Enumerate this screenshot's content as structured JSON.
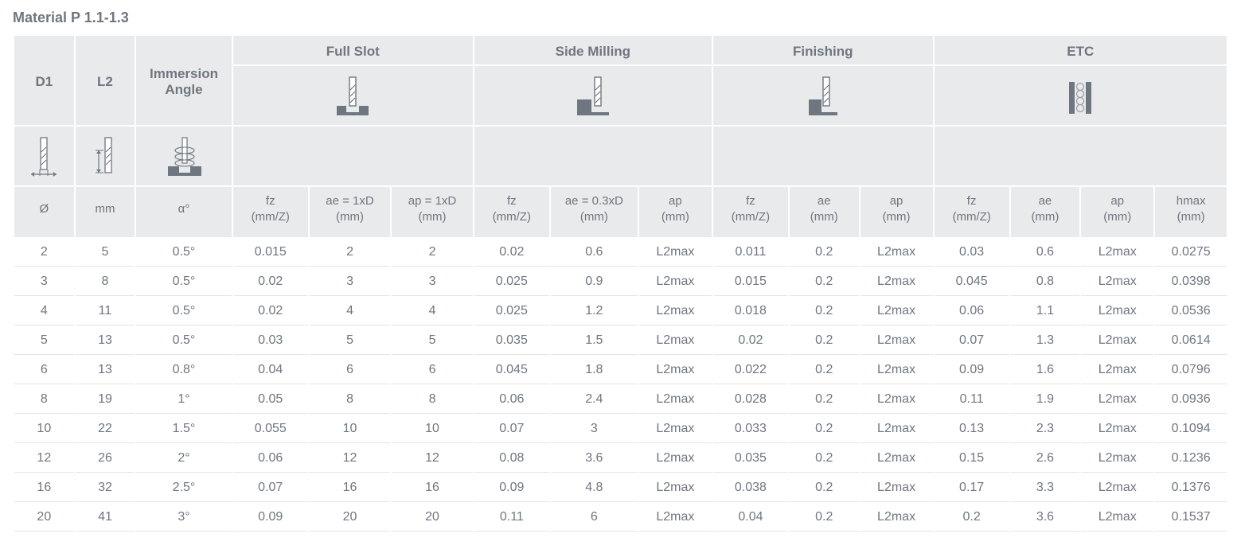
{
  "title": "Material P 1.1-1.3",
  "colors": {
    "header_bg": "#e9eaeb",
    "text": "#6f7680",
    "row_border": "#e2e4e6",
    "icon_fill": "#6f7680",
    "icon_hatch": "#9aa0a7",
    "bg": "#ffffff"
  },
  "header": {
    "d1": "D1",
    "l2": "L2",
    "immersion": "Immersion Angle",
    "groups": [
      {
        "label": "Full Slot",
        "span": 3
      },
      {
        "label": "Side Milling",
        "span": 3
      },
      {
        "label": "Finishing",
        "span": 3
      },
      {
        "label": "ETC",
        "span": 4
      }
    ],
    "units": {
      "d1": "Ø",
      "l2": "mm",
      "immersion": "α°",
      "cols": [
        "fz\n(mm/Z)",
        "ae = 1xD\n(mm)",
        "ap = 1xD\n(mm)",
        "fz\n(mm/Z)",
        "ae = 0.3xD\n(mm)",
        "ap\n(mm)",
        "fz\n(mm/Z)",
        "ae\n(mm)",
        "ap\n(mm)",
        "fz\n(mm/Z)",
        "ae\n(mm)",
        "ap\n(mm)",
        "hmax\n(mm)"
      ]
    }
  },
  "rows": [
    [
      "2",
      "5",
      "0.5°",
      "0.015",
      "2",
      "2",
      "0.02",
      "0.6",
      "L2max",
      "0.011",
      "0.2",
      "L2max",
      "0.03",
      "0.6",
      "L2max",
      "0.0275"
    ],
    [
      "3",
      "8",
      "0.5°",
      "0.02",
      "3",
      "3",
      "0.025",
      "0.9",
      "L2max",
      "0.015",
      "0.2",
      "L2max",
      "0.045",
      "0.8",
      "L2max",
      "0.0398"
    ],
    [
      "4",
      "11",
      "0.5°",
      "0.02",
      "4",
      "4",
      "0.025",
      "1.2",
      "L2max",
      "0.018",
      "0.2",
      "L2max",
      "0.06",
      "1.1",
      "L2max",
      "0.0536"
    ],
    [
      "5",
      "13",
      "0.5°",
      "0.03",
      "5",
      "5",
      "0.035",
      "1.5",
      "L2max",
      "0.02",
      "0.2",
      "L2max",
      "0.07",
      "1.3",
      "L2max",
      "0.0614"
    ],
    [
      "6",
      "13",
      "0.8°",
      "0.04",
      "6",
      "6",
      "0.045",
      "1.8",
      "L2max",
      "0.022",
      "0.2",
      "L2max",
      "0.09",
      "1.6",
      "L2max",
      "0.0796"
    ],
    [
      "8",
      "19",
      "1°",
      "0.05",
      "8",
      "8",
      "0.06",
      "2.4",
      "L2max",
      "0.028",
      "0.2",
      "L2max",
      "0.11",
      "1.9",
      "L2max",
      "0.0936"
    ],
    [
      "10",
      "22",
      "1.5°",
      "0.055",
      "10",
      "10",
      "0.07",
      "3",
      "L2max",
      "0.033",
      "0.2",
      "L2max",
      "0.13",
      "2.3",
      "L2max",
      "0.1094"
    ],
    [
      "12",
      "26",
      "2°",
      "0.06",
      "12",
      "12",
      "0.08",
      "3.6",
      "L2max",
      "0.035",
      "0.2",
      "L2max",
      "0.15",
      "2.6",
      "L2max",
      "0.1236"
    ],
    [
      "16",
      "32",
      "2.5°",
      "0.07",
      "16",
      "16",
      "0.09",
      "4.8",
      "L2max",
      "0.038",
      "0.2",
      "L2max",
      "0.17",
      "3.3",
      "L2max",
      "0.1376"
    ],
    [
      "20",
      "41",
      "3°",
      "0.09",
      "20",
      "20",
      "0.11",
      "6",
      "L2max",
      "0.04",
      "0.2",
      "L2max",
      "0.2",
      "3.6",
      "L2max",
      "0.1537"
    ]
  ],
  "col_widths_pct": [
    5.0,
    5.0,
    8.0,
    6.3,
    6.8,
    6.8,
    6.3,
    7.3,
    6.1,
    6.3,
    5.8,
    6.1,
    6.3,
    5.8,
    6.1,
    6.0
  ]
}
